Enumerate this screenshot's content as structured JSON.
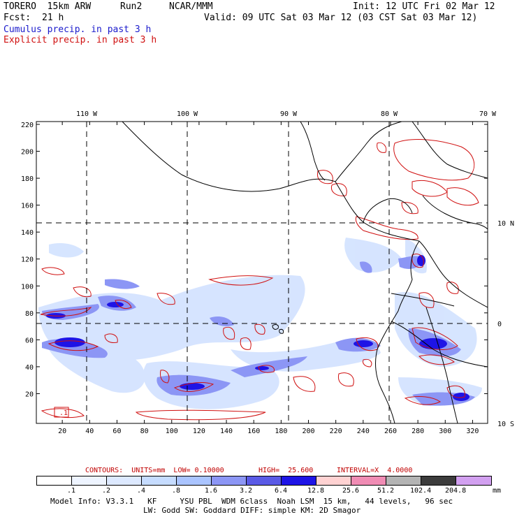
{
  "header": {
    "model": "TORERO  15km ARW",
    "run": "Run2",
    "org": "NCAR/MMM",
    "init": "Init: 12 UTC Fri 02 Mar 12",
    "fcst_label": "Fcst:",
    "fcst_value": "21 h",
    "valid": "Valid: 09 UTC Sat 03 Mar 12 (03 CST Sat 03 Mar 12)",
    "line_cumulus": "Cumulus precip. in past 3 h",
    "line_explicit": "Explicit precip. in past 3 h"
  },
  "map": {
    "top_lon_labels": [
      "110 W",
      "100 W",
      "90 W",
      "80 W",
      "70 W"
    ],
    "right_lat_labels": [
      "10 N",
      "0",
      "10 S"
    ],
    "y_ticks": [
      "220",
      "200",
      "180",
      "160",
      "140",
      "120",
      "100",
      "80",
      "60",
      "40",
      "20"
    ],
    "x_ticks": [
      "20",
      "40",
      "60",
      "80",
      "100",
      "120",
      "140",
      "160",
      "180",
      "200",
      "220",
      "240",
      "260",
      "280",
      "300",
      "320"
    ],
    "box_label": ".1"
  },
  "contours": {
    "units": "CONTOURS:  UNITS=mm  LOW= 0.10000",
    "high": "HIGH=  25.600",
    "interval": "INTERVAL=X  4.0000"
  },
  "legend": {
    "unit": "mm",
    "labels": [
      ".1",
      ".2",
      ".4",
      ".8",
      "1.6",
      "3.2",
      "6.4",
      "12.8",
      "25.6",
      "51.2",
      "102.4",
      "204.8"
    ],
    "colors": [
      "#ffffff",
      "#eef4ff",
      "#dde9ff",
      "#c6dcff",
      "#aac4ff",
      "#8c96f5",
      "#5a5ae6",
      "#1e14e6",
      "#ffd2d2",
      "#f08cb4",
      "#b4b4b4",
      "#3c3c3c",
      "#d2a0f0"
    ]
  },
  "footer": {
    "line1": "Model Info: V3.3.1   KF     YSU PBL  WDM 6class  Noah LSM  15 km,   44 levels,   96 sec",
    "line2": "LW: Godd SW: Goddard DIFF: simple KM: 2D Smagor"
  }
}
